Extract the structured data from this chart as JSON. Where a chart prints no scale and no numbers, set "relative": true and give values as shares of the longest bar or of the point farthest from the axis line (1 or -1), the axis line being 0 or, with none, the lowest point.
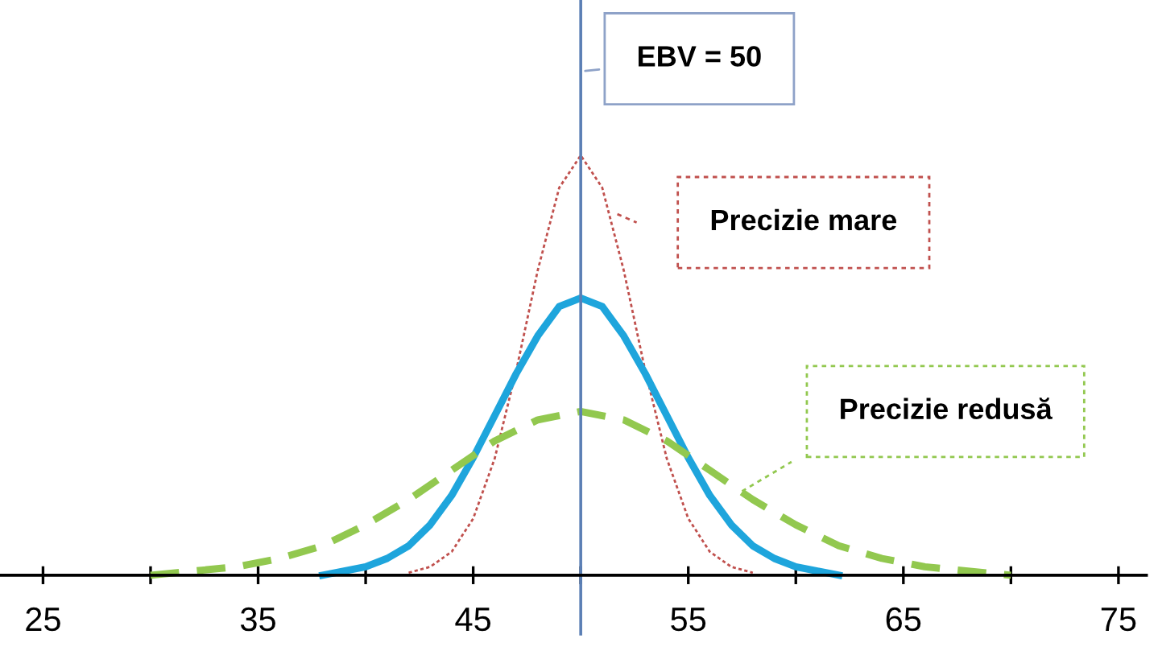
{
  "chart_data": {
    "type": "line",
    "relative": true,
    "xlim": [
      23,
      76.3
    ],
    "xticks": [
      25,
      {
        "value": 30,
        "label": null
      },
      35,
      {
        "value": 40,
        "label": null
      },
      45,
      {
        "value": 50,
        "label": null
      },
      55,
      {
        "value": 60,
        "label": null
      },
      65,
      {
        "value": 70,
        "label": null
      },
      75
    ],
    "tick_labels": "x",
    "grid": false,
    "marker": "none",
    "series": [
      {
        "color": "#c0504d",
        "line_style": "dotted",
        "x": [
          42,
          43,
          44,
          45,
          46,
          47,
          48,
          49,
          50,
          51,
          52,
          53,
          54,
          55,
          56,
          57,
          58
        ],
        "values": [
          0.006,
          0.02,
          0.056,
          0.135,
          0.278,
          0.487,
          0.726,
          0.923,
          1,
          0.923,
          0.726,
          0.487,
          0.278,
          0.135,
          0.056,
          0.02,
          0.006
        ]
      },
      {
        "color": "#1ea5dc",
        "line_style": "solid",
        "x": [
          38,
          39,
          40,
          41,
          42,
          43,
          44,
          45,
          46,
          47,
          48,
          49,
          50,
          51,
          52,
          53,
          54,
          55,
          56,
          57,
          58,
          59,
          60,
          61,
          62
        ],
        "values": [
          0,
          0.01,
          0.02,
          0.04,
          0.07,
          0.12,
          0.19,
          0.28,
          0.38,
          0.48,
          0.57,
          0.64,
          0.66,
          0.64,
          0.57,
          0.48,
          0.38,
          0.28,
          0.19,
          0.12,
          0.07,
          0.04,
          0.02,
          0.01,
          0
        ]
      },
      {
        "color": "#92c84f",
        "line_style": "dashed",
        "x": [
          30,
          32,
          34,
          36,
          38,
          40,
          42,
          44,
          46,
          48,
          50,
          52,
          54,
          56,
          58,
          60,
          62,
          64,
          66,
          68,
          70
        ],
        "values": [
          0,
          0.01,
          0.02,
          0.04,
          0.07,
          0.12,
          0.18,
          0.25,
          0.32,
          0.37,
          0.39,
          0.37,
          0.32,
          0.25,
          0.18,
          0.12,
          0.07,
          0.04,
          0.02,
          0.01,
          0
        ]
      }
    ],
    "ref_lines": [
      {
        "axis": "x",
        "value": 50,
        "label": "EBV = 50",
        "color": "#5b7fb5"
      }
    ],
    "annotations": [
      "Precizie mare",
      "Precizie redusă"
    ]
  }
}
